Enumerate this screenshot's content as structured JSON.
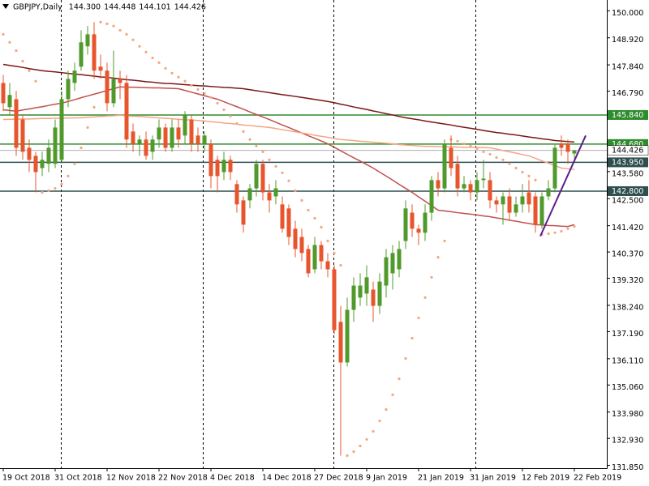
{
  "chart_data": {
    "type": "candlestick",
    "symbol": "GBPJPY,Daily",
    "header_values": [
      "144.300",
      "144.448",
      "144.101",
      "144.426"
    ],
    "categories": [
      "19 Oct 2018",
      null,
      null,
      null,
      null,
      null,
      null,
      null,
      "31 Oct 2018",
      null,
      null,
      null,
      null,
      null,
      null,
      null,
      "12 Nov 2018",
      null,
      null,
      null,
      null,
      null,
      null,
      null,
      "22 Nov 2018",
      null,
      null,
      null,
      null,
      null,
      null,
      null,
      "4 Dec 2018",
      null,
      null,
      null,
      null,
      null,
      null,
      null,
      "14 Dec 2018",
      null,
      null,
      null,
      null,
      null,
      null,
      null,
      "27 Dec 2018",
      null,
      null,
      null,
      null,
      null,
      null,
      null,
      "9 Jan 2019",
      null,
      null,
      null,
      null,
      null,
      null,
      null,
      "21 Jan 2019",
      null,
      null,
      null,
      null,
      null,
      null,
      null,
      "31 Jan 2019",
      null,
      null,
      null,
      null,
      null,
      null,
      null,
      "12 Feb 2019",
      null,
      null,
      null,
      null,
      null,
      null,
      null,
      "22 Feb 2019"
    ],
    "open": [
      147.12,
      146.15,
      146.47,
      145.66,
      144.53,
      144.21,
      143.72,
      143.89,
      143.89,
      144.05,
      146.47,
      147.12,
      147.77,
      148.58,
      149.06,
      147.77,
      147.61,
      146.31,
      147.28,
      147.12,
      145.18,
      144.69,
      144.86,
      144.37,
      144.86,
      145.34,
      144.53,
      145.34,
      145.02,
      145.66,
      145.02,
      144.69,
      144.69,
      144.05,
      143.56,
      144.05,
      143.08,
      142.43,
      142.43,
      142.91,
      143.89,
      142.75,
      142.59,
      142.27,
      142.11,
      141.3,
      140.97,
      140.49,
      139.68,
      140.65,
      140.0,
      139.68,
      137.58,
      135.96,
      138.06,
      138.55,
      138.71,
      138.87,
      138.22,
      139.03,
      139.52,
      139.68,
      140.81,
      141.94,
      141.3,
      141.14,
      141.94,
      143.24,
      142.91,
      144.53,
      143.89,
      142.91,
      143.08,
      142.75,
      143.24,
      143.24,
      142.43,
      142.27,
      142.59,
      141.94,
      142.27,
      142.75,
      142.59,
      141.46,
      142.59,
      142.91,
      144.69,
      144.69,
      144.3
    ],
    "high": [
      147.44,
      147.12,
      146.8,
      145.83,
      144.86,
      144.37,
      144.37,
      144.86,
      145.66,
      146.8,
      147.61,
      147.93,
      149.22,
      149.39,
      149.55,
      148.25,
      147.93,
      148.41,
      147.61,
      147.44,
      145.5,
      145.02,
      145.18,
      145.02,
      145.66,
      145.5,
      145.66,
      145.66,
      145.99,
      145.83,
      145.34,
      145.18,
      144.86,
      144.21,
      144.37,
      144.21,
      143.24,
      142.59,
      143.08,
      144.05,
      144.05,
      143.08,
      143.24,
      142.59,
      142.27,
      141.62,
      141.3,
      140.65,
      140.97,
      140.81,
      140.33,
      139.84,
      138.22,
      138.55,
      139.36,
      139.52,
      139.84,
      139.19,
      139.52,
      140.49,
      140.65,
      140.81,
      142.43,
      142.27,
      141.46,
      142.27,
      143.4,
      143.56,
      144.86,
      145.02,
      144.21,
      143.4,
      143.24,
      143.56,
      144.05,
      143.56,
      142.59,
      142.75,
      142.91,
      142.59,
      143.08,
      143.24,
      142.75,
      142.75,
      143.24,
      144.69,
      145.02,
      144.86,
      144.448
    ],
    "low": [
      145.99,
      145.83,
      144.21,
      144.05,
      143.56,
      142.75,
      143.4,
      143.56,
      143.72,
      143.89,
      146.15,
      146.8,
      147.61,
      148.25,
      147.28,
      147.28,
      145.99,
      146.15,
      146.47,
      144.53,
      144.37,
      144.21,
      144.05,
      144.05,
      144.53,
      144.37,
      144.37,
      144.53,
      144.69,
      144.37,
      144.37,
      144.37,
      142.91,
      142.75,
      143.24,
      143.24,
      141.94,
      141.14,
      142.11,
      142.59,
      142.43,
      141.94,
      142.27,
      141.14,
      140.65,
      140.16,
      140.0,
      139.36,
      139.52,
      139.68,
      139.36,
      137.09,
      132.24,
      135.8,
      137.58,
      138.22,
      138.22,
      137.58,
      137.9,
      138.55,
      138.87,
      139.36,
      140.49,
      140.97,
      140.65,
      140.81,
      141.62,
      142.59,
      142.75,
      143.4,
      142.59,
      142.75,
      142.43,
      142.43,
      142.91,
      142.11,
      141.94,
      141.46,
      141.62,
      141.78,
      141.94,
      141.94,
      141.14,
      141.3,
      142.43,
      142.75,
      144.21,
      143.89,
      144.101
    ],
    "close": [
      146.31,
      146.64,
      144.53,
      144.37,
      144.05,
      143.56,
      144.05,
      144.53,
      145.34,
      146.47,
      147.28,
      147.61,
      148.74,
      149.06,
      147.61,
      147.61,
      146.31,
      147.28,
      147.12,
      144.86,
      144.69,
      144.86,
      144.21,
      144.86,
      145.34,
      144.53,
      145.34,
      144.86,
      145.83,
      144.69,
      144.69,
      145.02,
      143.4,
      143.4,
      144.05,
      143.56,
      142.27,
      141.46,
      142.91,
      143.89,
      142.75,
      142.43,
      142.91,
      141.3,
      140.97,
      140.49,
      140.33,
      139.52,
      140.65,
      140.0,
      139.68,
      137.25,
      135.96,
      138.06,
      139.03,
      139.03,
      139.36,
      138.22,
      139.19,
      140.16,
      140.33,
      140.49,
      142.11,
      141.3,
      141.14,
      141.94,
      143.24,
      142.91,
      144.69,
      143.72,
      142.91,
      143.08,
      142.75,
      143.24,
      143.3,
      142.43,
      142.27,
      142.59,
      141.94,
      142.27,
      142.59,
      142.27,
      141.46,
      142.59,
      142.91,
      144.53,
      144.53,
      144.37,
      144.426
    ],
    "up_color": "#4f9a2b",
    "down_color": "#e8552d",
    "lines": [
      {
        "color": "#7b1616",
        "values": [
          147.86,
          147.82,
          147.78,
          147.74,
          147.69,
          147.65,
          147.61,
          147.58,
          147.56,
          147.53,
          147.5,
          147.47,
          147.45,
          147.42,
          147.39,
          147.36,
          147.34,
          147.31,
          147.28,
          147.25,
          147.23,
          147.2,
          147.17,
          147.15,
          147.12,
          147.1,
          147.09,
          147.07,
          147.05,
          147.03,
          147.01,
          147.0,
          146.98,
          146.96,
          146.94,
          146.93,
          146.91,
          146.89,
          146.85,
          146.81,
          146.77,
          146.73,
          146.69,
          146.65,
          146.62,
          146.58,
          146.54,
          146.5,
          146.46,
          146.42,
          146.38,
          146.33,
          146.27,
          146.22,
          146.16,
          146.11,
          146.06,
          146.0,
          145.95,
          145.89,
          145.84,
          145.78,
          145.73,
          145.69,
          145.65,
          145.6,
          145.56,
          145.52,
          145.48,
          145.44,
          145.39,
          145.35,
          145.31,
          145.27,
          145.22,
          145.18,
          145.14,
          145.11,
          145.07,
          145.04,
          145.0,
          144.96,
          144.93,
          144.89,
          144.86,
          144.82,
          144.8,
          144.78,
          144.76
        ]
      },
      {
        "color": "#c0504d",
        "values": [
          146.05,
          146.02,
          145.99,
          146.04,
          146.08,
          146.13,
          146.17,
          146.22,
          146.27,
          146.31,
          146.38,
          146.45,
          146.53,
          146.6,
          146.67,
          146.74,
          146.82,
          146.89,
          146.96,
          146.95,
          146.95,
          146.94,
          146.93,
          146.92,
          146.92,
          146.91,
          146.9,
          146.89,
          146.82,
          146.75,
          146.68,
          146.61,
          146.54,
          146.47,
          146.37,
          146.27,
          146.17,
          146.07,
          145.96,
          145.86,
          145.76,
          145.66,
          145.55,
          145.44,
          145.34,
          145.23,
          145.12,
          145.01,
          144.91,
          144.8,
          144.69,
          144.55,
          144.41,
          144.27,
          144.13,
          144.0,
          143.86,
          143.72,
          143.56,
          143.4,
          143.24,
          143.07,
          142.91,
          142.75,
          142.57,
          142.4,
          142.22,
          142.04,
          142.01,
          141.98,
          141.94,
          141.91,
          141.88,
          141.85,
          141.81,
          141.78,
          141.73,
          141.69,
          141.64,
          141.6,
          141.55,
          141.51,
          141.46,
          141.45,
          141.43,
          141.42,
          141.4,
          141.39,
          141.46
        ]
      },
      {
        "color": "#f4a582",
        "values": [
          145.66,
          145.67,
          145.67,
          145.68,
          145.68,
          145.69,
          145.7,
          145.7,
          145.71,
          145.71,
          145.72,
          145.72,
          145.73,
          145.75,
          145.76,
          145.78,
          145.8,
          145.81,
          145.83,
          145.81,
          145.79,
          145.78,
          145.76,
          145.74,
          145.72,
          145.71,
          145.69,
          145.67,
          145.65,
          145.64,
          145.62,
          145.6,
          145.57,
          145.55,
          145.52,
          145.5,
          145.47,
          145.44,
          145.42,
          145.39,
          145.37,
          145.34,
          145.3,
          145.25,
          145.21,
          145.17,
          145.12,
          145.08,
          145.03,
          144.99,
          144.95,
          144.9,
          144.86,
          144.84,
          144.82,
          144.79,
          144.77,
          144.75,
          144.73,
          144.71,
          144.69,
          144.66,
          144.64,
          144.62,
          144.6,
          144.59,
          144.59,
          144.58,
          144.57,
          144.57,
          144.56,
          144.55,
          144.55,
          144.54,
          144.54,
          144.53,
          144.48,
          144.42,
          144.37,
          144.32,
          144.26,
          144.21,
          144.11,
          144.01,
          143.92,
          143.82,
          143.72,
          143.69,
          143.66
        ]
      }
    ],
    "sar": {
      "color": "#f4a582",
      "values": [
        149.06,
        148.74,
        148.41,
        147.99,
        147.61,
        147.19,
        142.75,
        142.82,
        142.91,
        143.08,
        143.4,
        143.89,
        144.53,
        145.34,
        146.15,
        149.55,
        149.48,
        149.39,
        149.22,
        149.06,
        148.84,
        148.58,
        148.35,
        148.12,
        147.93,
        147.7,
        147.51,
        147.35,
        147.19,
        147.02,
        146.86,
        146.7,
        146.54,
        146.31,
        146.05,
        145.79,
        145.5,
        145.18,
        144.86,
        144.6,
        144.37,
        144.05,
        143.79,
        143.53,
        143.21,
        142.82,
        142.43,
        142.04,
        141.72,
        141.36,
        140.81,
        140.33,
        139.84,
        132.24,
        132.4,
        132.63,
        132.89,
        133.21,
        133.63,
        134.08,
        134.67,
        135.31,
        136.12,
        136.93,
        137.74,
        138.55,
        139.36,
        140.16,
        140.81,
        144.86,
        144.79,
        144.69,
        144.6,
        144.5,
        144.37,
        144.27,
        144.14,
        144.05,
        143.89,
        143.72,
        143.56,
        143.4,
        143.24,
        141.07,
        141.1,
        141.14,
        141.2,
        141.3,
        141.39
      ]
    },
    "levels": [
      {
        "value": 145.84,
        "label": "145.840",
        "color": "#2e8b2e",
        "text_color": "#ffffff"
      },
      {
        "value": 144.68,
        "label": "144.680",
        "color": "#2e8b2e",
        "text_color": "#ffffff"
      },
      {
        "value": 143.95,
        "label": "143.950",
        "color": "#2f4f4f",
        "text_color": "#ffffff"
      },
      {
        "value": 142.8,
        "label": "142.800",
        "color": "#2f4f4f",
        "text_color": "#ffffff"
      }
    ],
    "last_price": {
      "value": 144.426,
      "label": "144.426",
      "color": "#b0b0b0"
    },
    "trendline": {
      "color": "#5c1e8c",
      "start": {
        "bar": 82.75,
        "price": 141.0
      },
      "end": {
        "bar": 89.75,
        "price": 145.02
      }
    },
    "ylim": [
      131.74,
      150.43
    ],
    "yticks": [
      {
        "value": 150,
        "label": "150.000"
      },
      {
        "value": 148.92,
        "label": "148.920"
      },
      {
        "value": 147.84,
        "label": "147.840"
      },
      {
        "value": 146.79,
        "label": "146.790"
      },
      {
        "value": 143.58,
        "label": "143.580"
      },
      {
        "value": 142.5,
        "label": "142.500"
      },
      {
        "value": 141.42,
        "label": "141.420"
      },
      {
        "value": 140.37,
        "label": "140.370"
      },
      {
        "value": 139.32,
        "label": "139.320"
      },
      {
        "value": 138.24,
        "label": "138.240"
      },
      {
        "value": 137.19,
        "label": "137.190"
      },
      {
        "value": 136.11,
        "label": "136.110"
      },
      {
        "value": 135.06,
        "label": "135.060"
      },
      {
        "value": 133.98,
        "label": "133.980"
      },
      {
        "value": 132.93,
        "label": "132.930"
      },
      {
        "value": 131.85,
        "label": "131.850"
      }
    ]
  }
}
